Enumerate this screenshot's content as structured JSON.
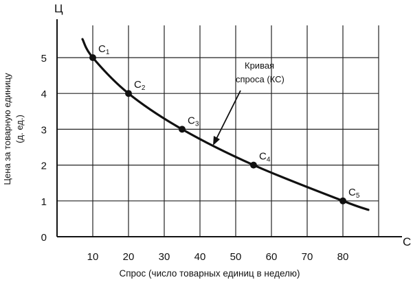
{
  "chart_data": {
    "type": "line",
    "x_axis_letter": "С",
    "y_axis_letter": "Ц",
    "xlabel": "Спрос (число товарных единиц в неделю)",
    "ylabel_line1": "Цена за товарную единицу",
    "ylabel_line2": "(д. ед.)",
    "x_ticks": [
      "10",
      "20",
      "30",
      "40",
      "50",
      "60",
      "70",
      "80"
    ],
    "y_ticks": [
      "0",
      "1",
      "2",
      "3",
      "4",
      "5"
    ],
    "xlim": [
      0,
      90
    ],
    "ylim": [
      0,
      6
    ],
    "grid": true,
    "series": [
      {
        "points": [
          {
            "x": 10,
            "y": 5,
            "label": "C",
            "sub": "1"
          },
          {
            "x": 20,
            "y": 4,
            "label": "C",
            "sub": "2"
          },
          {
            "x": 35,
            "y": 3,
            "label": "C",
            "sub": "3"
          },
          {
            "x": 55,
            "y": 2,
            "label": "C",
            "sub": "4"
          },
          {
            "x": 80,
            "y": 1,
            "label": "C",
            "sub": "5"
          }
        ]
      }
    ],
    "annotation": {
      "line1": "Кривая",
      "line2": "спроса (КС)"
    }
  }
}
